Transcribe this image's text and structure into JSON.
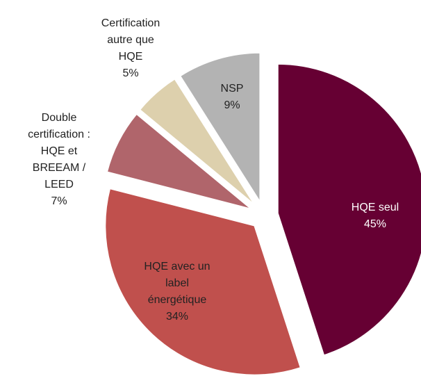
{
  "chart_data": {
    "type": "pie",
    "categories": [
      "HQE seul",
      "HQE avec un label énergétique",
      "Double certification : HQE et BREEAM / LEED",
      "Certification autre que HQE",
      "NSP"
    ],
    "values": [
      45,
      34,
      7,
      5,
      9
    ],
    "value_labels": [
      "45%",
      "34%",
      "7%",
      "5%",
      "9%"
    ],
    "colors": [
      "#660033",
      "#c0504d",
      "#b0656b",
      "#ddd0ad",
      "#b3b3b3"
    ]
  }
}
